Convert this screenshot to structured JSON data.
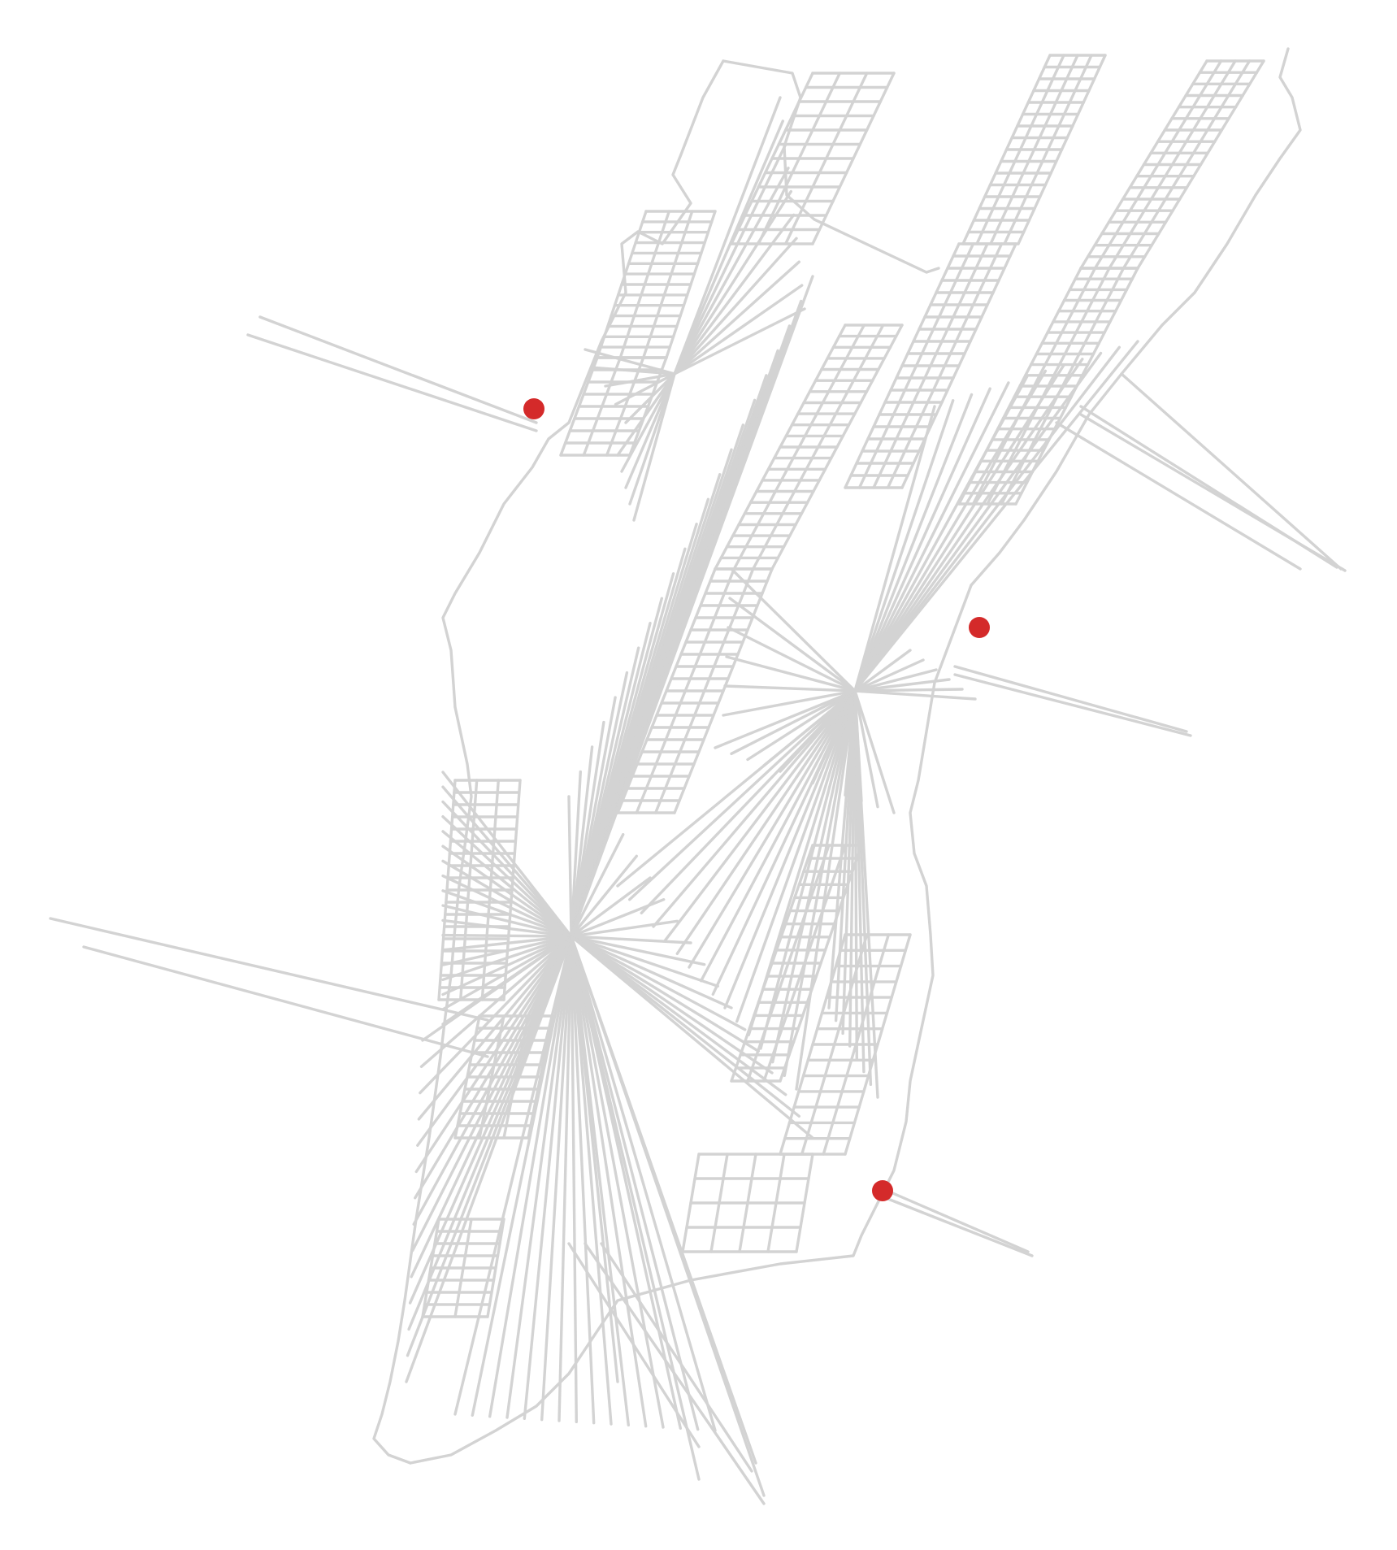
{
  "map": {
    "style": {
      "background_color": "#ffffff",
      "road_color": "#d3d3d3",
      "highlight_color": "#d42a2a"
    },
    "highlighted_nodes": [
      {
        "id": "node-upper-west"
      },
      {
        "id": "node-east-midtown"
      },
      {
        "id": "node-lower-east"
      },
      {
        "id": "node-unused"
      }
    ]
  }
}
